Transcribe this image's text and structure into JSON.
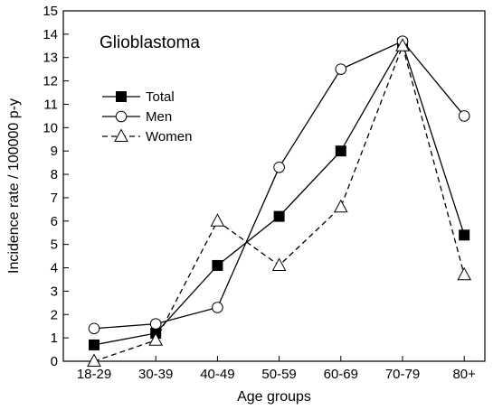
{
  "chart_data": {
    "type": "line",
    "title": "Glioblastoma",
    "xlabel": "Age groups",
    "ylabel": "Incidence rate / 100000 p-y",
    "categories": [
      "18-29",
      "30-39",
      "40-49",
      "50-59",
      "60-69",
      "70-79",
      "80+"
    ],
    "ylim": [
      0,
      15
    ],
    "yticks": [
      0,
      1,
      2,
      3,
      4,
      5,
      6,
      7,
      8,
      9,
      10,
      11,
      12,
      13,
      14,
      15
    ],
    "grid": false,
    "legend_position": "upper-left",
    "series": [
      {
        "name": "Total",
        "values": [
          0.7,
          1.2,
          4.1,
          6.2,
          9.0,
          13.6,
          5.4
        ],
        "marker": "filled-square",
        "line": "solid",
        "color": "#000000"
      },
      {
        "name": "Men",
        "values": [
          1.4,
          1.6,
          2.3,
          8.3,
          12.5,
          13.7,
          10.5
        ],
        "marker": "open-circle",
        "line": "solid",
        "color": "#000000"
      },
      {
        "name": "Women",
        "values": [
          0.0,
          0.9,
          6.0,
          4.1,
          6.6,
          13.5,
          3.7
        ],
        "marker": "open-triangle",
        "line": "dashed",
        "color": "#000000"
      }
    ]
  }
}
